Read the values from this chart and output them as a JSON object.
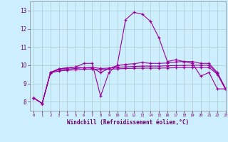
{
  "xlabel": "Windchill (Refroidissement éolien,°C)",
  "background_color": "#cceeff",
  "grid_color": "#aacccc",
  "line_color": "#990099",
  "xlim": [
    -0.5,
    23
  ],
  "ylim": [
    7.5,
    13.5
  ],
  "xticks": [
    0,
    1,
    2,
    3,
    4,
    5,
    6,
    7,
    8,
    9,
    10,
    11,
    12,
    13,
    14,
    15,
    16,
    17,
    18,
    19,
    20,
    21,
    22,
    23
  ],
  "yticks": [
    8,
    9,
    10,
    11,
    12,
    13
  ],
  "series": [
    [
      8.2,
      7.9,
      9.6,
      9.8,
      9.85,
      9.9,
      10.1,
      10.1,
      8.3,
      9.6,
      10.0,
      12.5,
      12.9,
      12.8,
      12.4,
      11.5,
      10.2,
      10.3,
      10.2,
      10.1,
      9.4,
      9.6,
      8.7,
      8.7
    ],
    [
      8.2,
      7.9,
      9.6,
      9.8,
      9.85,
      9.9,
      9.85,
      9.85,
      9.6,
      9.82,
      9.98,
      10.05,
      10.08,
      10.15,
      10.1,
      10.1,
      10.12,
      10.18,
      10.2,
      10.2,
      10.1,
      10.1,
      9.6,
      8.7
    ],
    [
      8.2,
      7.9,
      9.6,
      9.75,
      9.78,
      9.82,
      9.86,
      9.88,
      9.82,
      9.84,
      9.89,
      9.91,
      9.93,
      9.95,
      9.95,
      9.95,
      9.97,
      9.98,
      9.99,
      10.0,
      10.0,
      10.0,
      9.55,
      8.7
    ],
    [
      8.2,
      7.9,
      9.58,
      9.68,
      9.72,
      9.75,
      9.78,
      9.79,
      9.76,
      9.78,
      9.8,
      9.82,
      9.83,
      9.84,
      9.84,
      9.84,
      9.85,
      9.86,
      9.87,
      9.88,
      9.88,
      9.88,
      9.5,
      8.65
    ]
  ]
}
